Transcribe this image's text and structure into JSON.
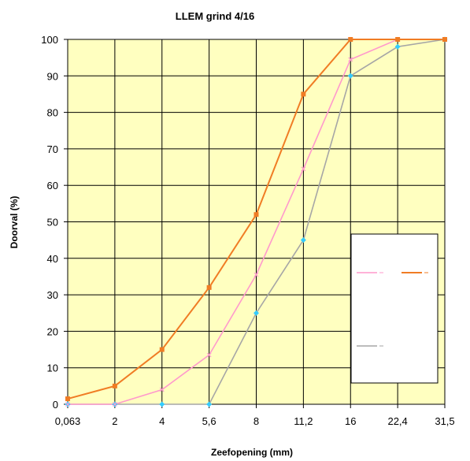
{
  "chart_data": {
    "type": "line",
    "title": "LLEM grind 4/16",
    "xlabel": "Zeefopening  (mm)",
    "ylabel": "Doorval (%)",
    "categories": [
      "0,063",
      "2",
      "4",
      "5,6",
      "8",
      "11,2",
      "16",
      "22,4",
      "31,5"
    ],
    "ylim": [
      0,
      100
    ],
    "yticks": [
      0,
      10,
      20,
      30,
      40,
      50,
      60,
      70,
      80,
      90,
      100
    ],
    "grid": true,
    "legend_position": "right",
    "series": [
      {
        "name": "",
        "color": "#f07c24",
        "marker": "square",
        "values": [
          1.5,
          5,
          15,
          32,
          52,
          85,
          100,
          100,
          100
        ]
      },
      {
        "name": "",
        "color": "#ff99cc",
        "marker": "cross",
        "values": [
          0,
          0,
          4,
          13.5,
          35.5,
          64.5,
          94.5,
          100,
          100
        ]
      },
      {
        "name": "",
        "color": "#a6a6a6",
        "marker": "diamond",
        "values": [
          0,
          0,
          0,
          0,
          25,
          45,
          90,
          98,
          100
        ]
      }
    ]
  },
  "colors": {
    "plot_background": "#ffffc0",
    "grid": "#000000",
    "marker_fill": "#33ccff"
  }
}
